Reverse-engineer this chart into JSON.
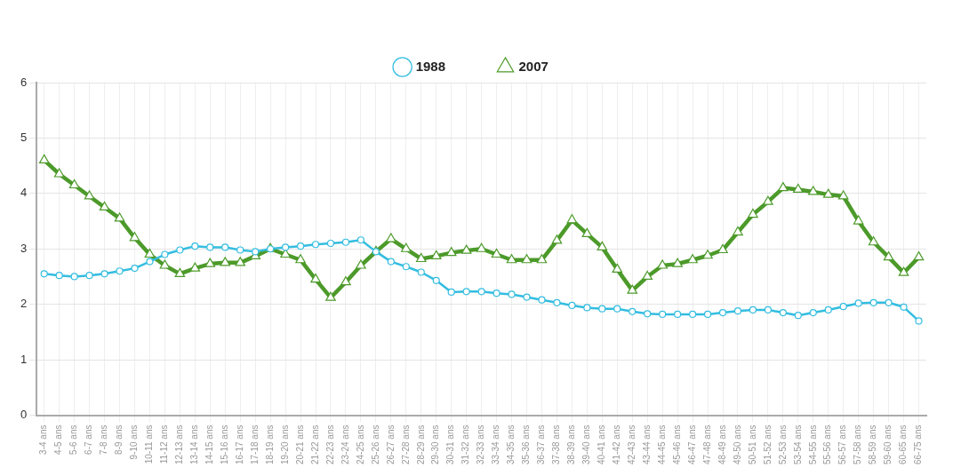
{
  "chart_data": {
    "type": "line",
    "categories": [
      "3-4 ans",
      "4-5 ans",
      "5-6 ans",
      "6-7 ans",
      "7-8 ans",
      "8-9 ans",
      "9-10 ans",
      "10-11 ans",
      "11-12 ans",
      "12-13 ans",
      "13-14 ans",
      "14-15 ans",
      "15-16 ans",
      "16-17 ans",
      "17-18 ans",
      "18-19 ans",
      "19-20 ans",
      "20-21 ans",
      "21-22 ans",
      "22-23 ans",
      "23-24 ans",
      "24-25 ans",
      "25-26 ans",
      "26-27 ans",
      "27-28 ans",
      "28-29 ans",
      "29-30 ans",
      "30-31 ans",
      "31-32 ans",
      "32-33 ans",
      "33-34 ans",
      "34-35 ans",
      "35-36 ans",
      "36-37 ans",
      "37-38 ans",
      "38-39 ans",
      "39-40 ans",
      "40-41 ans",
      "41-42 ans",
      "42-43 ans",
      "43-44 ans",
      "44-45 ans",
      "45-46 ans",
      "46-47 ans",
      "47-48 ans",
      "48-49 ans",
      "49-50 ans",
      "50-51 ans",
      "51-52 ans",
      "52-53 ans",
      "53-54 ans",
      "54-55 ans",
      "55-56 ans",
      "56-57 ans",
      "57-58 ans",
      "58-59 ans",
      "59-60 ans",
      "60-65 ans",
      "66-75 ans"
    ],
    "series": [
      {
        "name": "1988",
        "color": "#33bde0",
        "marker": "circle",
        "values": [
          2.55,
          2.52,
          2.5,
          2.52,
          2.55,
          2.6,
          2.65,
          2.77,
          2.9,
          2.98,
          3.05,
          3.03,
          3.03,
          2.98,
          2.95,
          3.0,
          3.03,
          3.05,
          3.08,
          3.1,
          3.12,
          3.16,
          2.95,
          2.77,
          2.68,
          2.58,
          2.43,
          2.22,
          2.23,
          2.23,
          2.2,
          2.18,
          2.13,
          2.08,
          2.03,
          1.98,
          1.94,
          1.92,
          1.92,
          1.87,
          1.83,
          1.82,
          1.82,
          1.82,
          1.82,
          1.85,
          1.88,
          1.9,
          1.9,
          1.85,
          1.8,
          1.85,
          1.9,
          1.96,
          2.02,
          2.03,
          2.03,
          1.95,
          1.7
        ]
      },
      {
        "name": "2007",
        "color": "#4c9a2a",
        "marker": "triangle",
        "values": [
          4.6,
          4.35,
          4.15,
          3.95,
          3.75,
          3.55,
          3.2,
          2.9,
          2.7,
          2.55,
          2.65,
          2.73,
          2.75,
          2.75,
          2.87,
          3.0,
          2.9,
          2.8,
          2.45,
          2.12,
          2.4,
          2.7,
          2.95,
          3.18,
          3.0,
          2.82,
          2.87,
          2.93,
          2.97,
          3.0,
          2.9,
          2.8,
          2.8,
          2.8,
          3.15,
          3.52,
          3.27,
          3.03,
          2.63,
          2.25,
          2.5,
          2.7,
          2.73,
          2.8,
          2.88,
          2.98,
          3.3,
          3.62,
          3.85,
          4.1,
          4.07,
          4.03,
          3.98,
          3.95,
          3.5,
          3.12,
          2.85,
          2.57,
          2.85
        ]
      }
    ],
    "ylim": [
      0,
      6
    ],
    "yticks": [
      0,
      1,
      2,
      3,
      4,
      5,
      6
    ],
    "grid": true,
    "legend": "top",
    "line_style": "solid"
  }
}
